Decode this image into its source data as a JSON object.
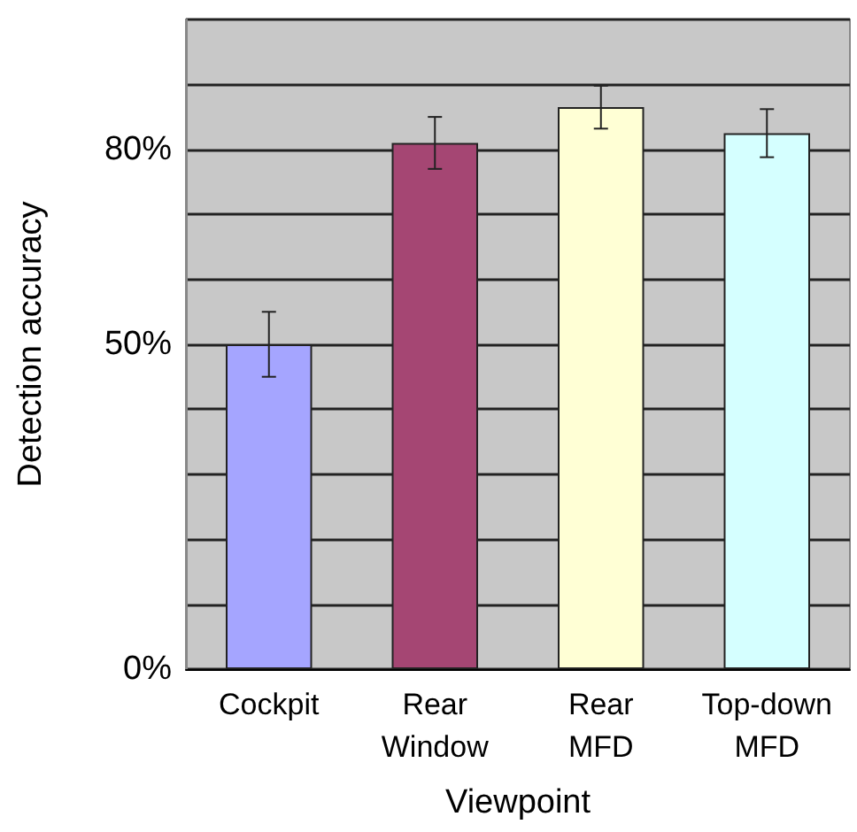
{
  "chart_data": {
    "type": "bar",
    "xlabel": "Viewpoint",
    "ylabel": "Detection accuracy",
    "categories": [
      "Cockpit",
      "Rear Window",
      "Rear MFD",
      "Top-down MFD"
    ],
    "values": [
      50,
      81,
      86.5,
      82.5
    ],
    "colors": [
      "#a5a5ff",
      "#a54673",
      "#ffffd5",
      "#d5ffff"
    ],
    "errors": [
      5,
      4,
      3.3,
      3.7
    ],
    "ylim": [
      0,
      100
    ],
    "yticks": [
      {
        "value": 0,
        "label": "0%"
      },
      {
        "value": 10,
        "label": null
      },
      {
        "value": 20,
        "label": null
      },
      {
        "value": 30,
        "label": null
      },
      {
        "value": 40,
        "label": null
      },
      {
        "value": 50,
        "label": "50%"
      },
      {
        "value": 60,
        "label": null
      },
      {
        "value": 70,
        "label": null
      },
      {
        "value": 80,
        "label": "80%"
      },
      {
        "value": 90,
        "label": null
      },
      {
        "value": 100,
        "label": null
      }
    ],
    "grid": "y"
  }
}
